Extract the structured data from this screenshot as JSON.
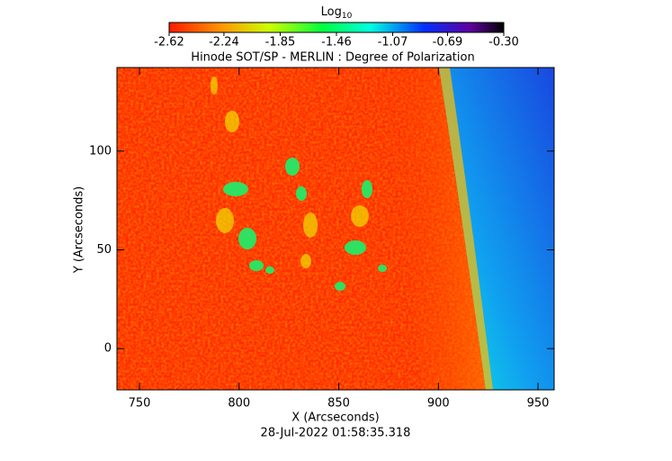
{
  "chart_data": {
    "type": "image",
    "title": "Hinode SOT/SP - MERLIN : Degree of Polarization",
    "xlabel": "X (Arcseconds)",
    "ylabel": "Y (Arcseconds)",
    "timestamp": "28-Jul-2022 01:58:35.318",
    "colorbar": {
      "label": "Log",
      "label_sub": "10",
      "clim": [
        -2.62,
        -0.3
      ],
      "ticks": [
        -2.62,
        -2.24,
        -1.85,
        -1.46,
        -1.07,
        -0.69,
        {
          "value": -0.3,
          "label": "-0.30"
        }
      ]
    },
    "xlim": [
      738.7,
      958.1
    ],
    "xticks": [
      750,
      800,
      850,
      900,
      950
    ],
    "ylim": [
      -20.9,
      142.3
    ],
    "yticks": [
      0,
      50,
      100
    ]
  }
}
